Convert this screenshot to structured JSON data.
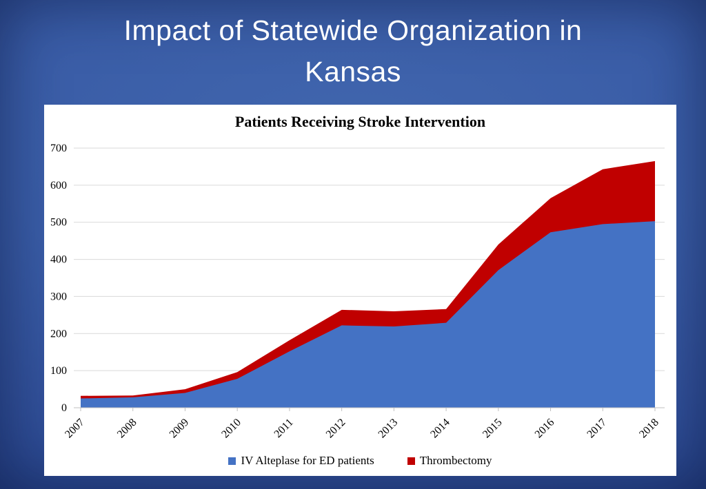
{
  "slide": {
    "title_lines": [
      "Impact of Statewide Organization in",
      "Kansas"
    ]
  },
  "chart_data": {
    "type": "area",
    "stacked": true,
    "title": "Patients Receiving Stroke Intervention",
    "categories": [
      "2007",
      "2008",
      "2009",
      "2010",
      "2011",
      "2012",
      "2013",
      "2014",
      "2015",
      "2016",
      "2017",
      "2018"
    ],
    "series": [
      {
        "name": "IV Alteplase for ED patients",
        "color": "#4472C4",
        "values": [
          25,
          28,
          40,
          78,
          152,
          222,
          219,
          229,
          371,
          473,
          495,
          503
        ]
      },
      {
        "name": "Thrombectomy",
        "color": "#C00000",
        "values": [
          7,
          5,
          10,
          18,
          30,
          42,
          41,
          37,
          69,
          92,
          148,
          162
        ]
      }
    ],
    "stacked_totals": [
      32,
      33,
      50,
      96,
      182,
      264,
      260,
      266,
      440,
      565,
      643,
      665
    ],
    "xlabel": "",
    "ylabel": "",
    "ylim": [
      0,
      700
    ],
    "ytick_step": 100,
    "grid": true,
    "gridline_color": "#d9d9d9",
    "axis_line_color": "#bfbfbf",
    "legend_position": "bottom"
  }
}
